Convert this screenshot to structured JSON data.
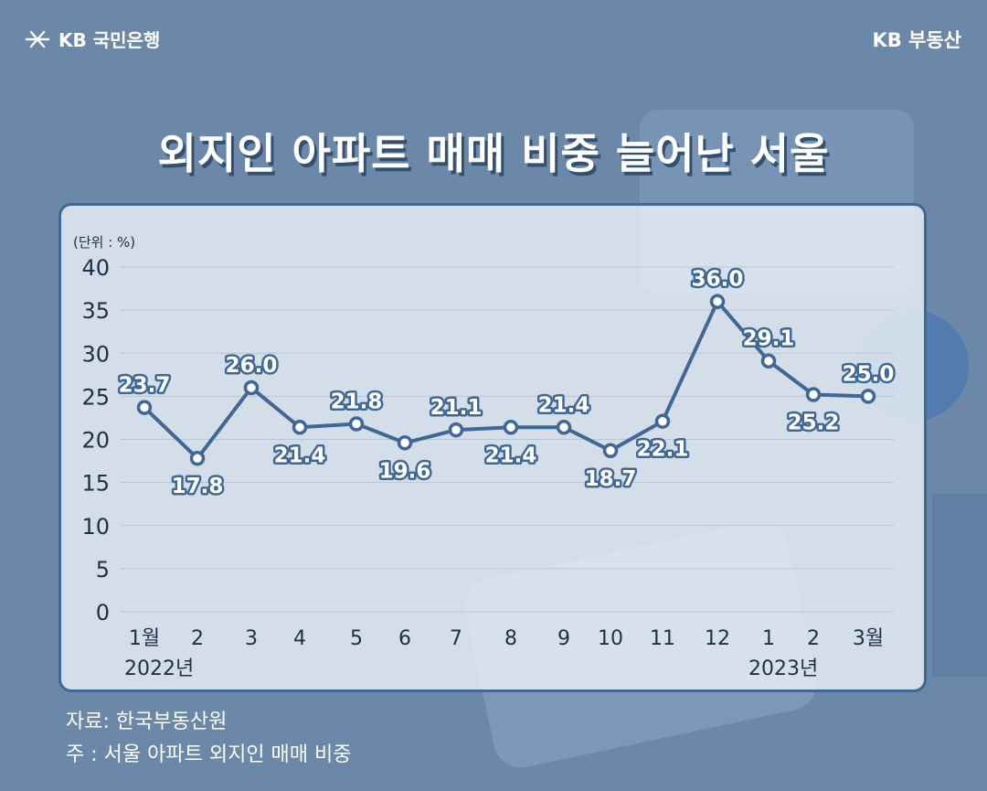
{
  "header": {
    "logo_text": "KB 국민은행",
    "logo_icon": "kb-star-icon",
    "brand": "KB 부동산"
  },
  "title": "외지인 아파트 매매 비중 늘어난 서울",
  "colors": {
    "background": "#6b88a8",
    "panel_border": "#3f6896",
    "line": "#3f6896",
    "title_shadow": "#34506e"
  },
  "chart_data": {
    "type": "line",
    "unit_label": "(단위 : %)",
    "categories": [
      "1월",
      "2",
      "3",
      "4",
      "5",
      "6",
      "7",
      "8",
      "9",
      "10",
      "11",
      "12",
      "1",
      "2",
      "3월"
    ],
    "year_labels": [
      {
        "label": "2022년",
        "under_category": 0
      },
      {
        "label": "2023년",
        "under_category": 12
      }
    ],
    "series": [
      {
        "values": [
          23.7,
          17.8,
          26.0,
          21.4,
          21.8,
          19.6,
          21.1,
          21.4,
          21.4,
          18.7,
          22.1,
          36.0,
          29.1,
          25.2,
          25.0
        ],
        "labels": [
          "23.7",
          "17.8",
          "26.0",
          "21.4",
          "21.8",
          "19.6",
          "21.1",
          "21.4",
          "21.4",
          "18.7",
          "22.1",
          "36.0",
          "29.1",
          "25.2",
          "25.0"
        ],
        "label_pos": [
          "above",
          "below",
          "above",
          "below",
          "above",
          "below",
          "above",
          "below",
          "above",
          "below",
          "below",
          "above",
          "above",
          "below",
          "above"
        ]
      }
    ],
    "ylim": [
      0,
      40
    ],
    "yticks": [
      "0",
      "5",
      "10",
      "15",
      "20",
      "25",
      "30",
      "35",
      "40"
    ],
    "grid": true
  },
  "source": {
    "line1": "자료: 한국부동산원",
    "line2": "주 : 서울 아파트 외지인 매매 비중"
  }
}
